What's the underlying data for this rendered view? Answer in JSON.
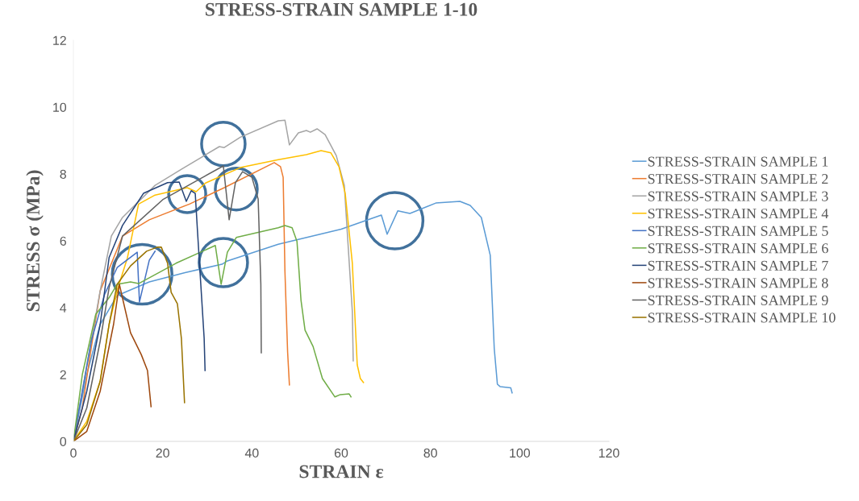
{
  "chart_data": {
    "type": "line",
    "title": "STRESS-STRAIN SAMPLE 1-10",
    "xlabel": "STRAIN ε",
    "ylabel": "STRESS σ (MPa)",
    "xlim": [
      0,
      120
    ],
    "xticks": [
      0,
      20,
      40,
      60,
      80,
      100,
      120
    ],
    "ylim": [
      0,
      12
    ],
    "yticks": [
      0,
      2,
      4,
      6,
      8,
      10,
      12
    ],
    "grid": false,
    "legend": "right",
    "marker": "none",
    "line_style": "solid",
    "series": [
      {
        "name": "STRESS-STRAIN SAMPLE 1",
        "color": "#5b9bd5",
        "x": [
          0,
          3,
          6,
          9.8,
          17,
          25,
          33.3,
          34.5,
          45.9,
          60,
          69,
          70.3,
          72.7,
          75.4,
          81.2,
          86.6,
          88.9,
          91.4,
          93.4,
          94.3,
          95,
          95.6,
          98,
          98.3
        ],
        "values": [
          0,
          2,
          3.5,
          4.36,
          4.77,
          5.05,
          5.3,
          5.4,
          5.9,
          6.35,
          6.77,
          6.2,
          6.9,
          6.82,
          7.13,
          7.18,
          7.06,
          6.7,
          5.57,
          2.77,
          1.71,
          1.64,
          1.6,
          1.45
        ]
      },
      {
        "name": "STRESS-STRAIN SAMPLE 2",
        "color": "#ed7d31",
        "x": [
          0,
          2,
          4,
          6,
          11,
          17,
          26,
          33.8,
          45,
          46.4,
          47,
          47.4,
          48,
          48.4
        ],
        "values": [
          0,
          1,
          2.8,
          4.5,
          6.14,
          6.63,
          7.1,
          7.59,
          8.34,
          8.22,
          7.9,
          5.08,
          2.67,
          1.69
        ]
      },
      {
        "name": "STRESS-STRAIN SAMPLE 3",
        "color": "#a5a5a5",
        "x": [
          0,
          2,
          4,
          6,
          8.5,
          11,
          18.3,
          24.2,
          32.7,
          33.8,
          37.4,
          45.9,
          47.4,
          48.4,
          50.4,
          52.2,
          53.1,
          54.6,
          56.4,
          58.9,
          60.7,
          62.5,
          62.7
        ],
        "values": [
          0,
          1.5,
          3,
          4.5,
          6.14,
          6.7,
          7.66,
          8.14,
          8.82,
          8.79,
          9.1,
          9.59,
          9.61,
          8.87,
          9.23,
          9.3,
          9.25,
          9.35,
          9.18,
          8.55,
          7.66,
          3.88,
          2.41
        ]
      },
      {
        "name": "STRESS-STRAIN SAMPLE 4",
        "color": "#ffc000",
        "x": [
          0,
          3,
          6,
          8,
          10,
          12.1,
          14.6,
          18.3,
          25.5,
          27.5,
          29.6,
          37.4,
          45.9,
          52.2,
          55.5,
          57.7,
          59.5,
          60.9,
          62.5,
          63.6,
          64.3,
          65
        ],
        "values": [
          0,
          0.6,
          1.8,
          3.5,
          4.6,
          5.49,
          7.1,
          7.37,
          7.59,
          7.47,
          7.73,
          8.19,
          8.43,
          8.58,
          8.7,
          8.63,
          8.22,
          7.42,
          5.33,
          2.29,
          1.88,
          1.76
        ]
      },
      {
        "name": "STRESS-STRAIN SAMPLE 5",
        "color": "#4472c4",
        "x": [
          0,
          2,
          4,
          7,
          9.8,
          14.3,
          14.8,
          17,
          18.3
        ],
        "values": [
          0,
          1.5,
          3,
          4.4,
          5.2,
          5.66,
          4.17,
          5.42,
          5.69
        ]
      },
      {
        "name": "STRESS-STRAIN SAMPLE 6",
        "color": "#70ad47",
        "x": [
          0,
          2,
          5,
          8,
          9.8,
          12.8,
          14.6,
          23,
          31.8,
          33.1,
          34.5,
          36.5,
          45.9,
          47.4,
          49,
          50.1,
          51,
          51.9,
          53.7,
          55.8,
          58.6,
          59.8,
          61.8,
          62.2
        ],
        "values": [
          0,
          2,
          3.8,
          4.3,
          4.7,
          4.77,
          4.72,
          5.33,
          5.86,
          4.7,
          5.66,
          6.1,
          6.39,
          6.46,
          6.39,
          5.98,
          4.22,
          3.33,
          2.84,
          1.88,
          1.33,
          1.4,
          1.42,
          1.33
        ]
      },
      {
        "name": "STRESS-STRAIN SAMPLE 7",
        "color": "#264478",
        "x": [
          0,
          3,
          6,
          8,
          11,
          15.7,
          21.1,
          23.7,
          25.3,
          26.4,
          27.3,
          27.8,
          29.3,
          29.5
        ],
        "values": [
          0,
          1.5,
          3.5,
          5.5,
          6.46,
          7.42,
          7.74,
          7.76,
          7.18,
          7.5,
          7.42,
          6.3,
          3.08,
          2.12
        ]
      },
      {
        "name": "STRESS-STRAIN SAMPLE 8",
        "color": "#9e480e",
        "x": [
          0,
          3,
          6,
          9,
          10.3,
          11,
          12.8,
          15.2,
          16.6,
          17.4
        ],
        "values": [
          0,
          0.3,
          1.5,
          3.5,
          4.7,
          4.29,
          3.25,
          2.6,
          2.12,
          1.04
        ]
      },
      {
        "name": "STRESS-STRAIN SAMPLE 9",
        "color": "#636363",
        "x": [
          0,
          3,
          6,
          8,
          11,
          20,
          29,
          33.6,
          34.9,
          36.3,
          37.9,
          40,
          41.4,
          42,
          42.1
        ],
        "values": [
          0,
          1,
          3,
          4.6,
          6.14,
          7.23,
          7.9,
          8.24,
          6.63,
          7.74,
          8.07,
          7.9,
          7.25,
          4.7,
          2.65
        ]
      },
      {
        "name": "STRESS-STRAIN SAMPLE 10",
        "color": "#997300",
        "x": [
          0,
          3,
          6,
          8,
          9.8,
          12.8,
          16.4,
          18.8,
          19.7,
          21.1,
          21.9,
          23.3,
          24.2,
          24.9
        ],
        "values": [
          0,
          0.5,
          1.8,
          3.5,
          4.7,
          5.25,
          5.69,
          5.81,
          5.81,
          5.33,
          4.46,
          4.12,
          3.08,
          1.16
        ]
      }
    ]
  }
}
